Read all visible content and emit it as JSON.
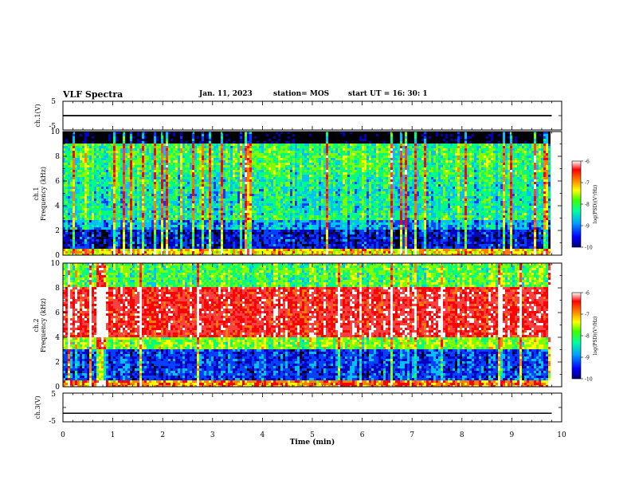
{
  "header": {
    "title": "VLF Spectra",
    "date": "Jan. 11, 2023",
    "station": "station= MOS",
    "start": "start  UT =   16: 30: 1"
  },
  "chart_data": [
    {
      "type": "line",
      "panel": "ch1-waveform",
      "ylabel": "ch.1(V)",
      "ylim": [
        -5,
        5
      ],
      "yticks": [
        "5",
        "-5"
      ],
      "xlim": [
        0,
        10
      ],
      "series": [
        {
          "values_level": 0,
          "extent_min": [
            0,
            9.8
          ]
        }
      ]
    },
    {
      "type": "heatmap",
      "panel": "ch1-spectrogram",
      "ylabel": "ch.1\nFrequency (kHz)",
      "xlim": [
        0,
        10
      ],
      "ylim": [
        0,
        10
      ],
      "xticks": [
        0,
        1,
        2,
        3,
        4,
        5,
        6,
        7,
        8,
        9,
        10
      ],
      "yticks": [
        0,
        2,
        4,
        6,
        8,
        10
      ],
      "data_extent_min": [
        0,
        9.8
      ],
      "colorbar": {
        "label": "log(PSD)(V²/Hz)",
        "ticks": [
          "-6",
          "-7",
          "-8",
          "-9",
          "-10"
        ],
        "range": [
          -10,
          -6
        ]
      },
      "profile_description_level": {
        "band_0_0.5kHz": -7.5,
        "band_0.5_2.8kHz": -9.5,
        "band_3_9kHz": -8.2,
        "band_9_10kHz": -10
      }
    },
    {
      "type": "heatmap",
      "panel": "ch2-spectrogram",
      "ylabel": "ch.2\nFrequency (kHz)",
      "xlim": [
        0,
        10
      ],
      "ylim": [
        0,
        10
      ],
      "xticks": [
        0,
        1,
        2,
        3,
        4,
        5,
        6,
        7,
        8,
        9,
        10
      ],
      "yticks": [
        0,
        2,
        4,
        6,
        8,
        10
      ],
      "data_extent_min": [
        0,
        9.8
      ],
      "colorbar": {
        "label": "log(PSD)(V²/Hz)",
        "ticks": [
          "-6",
          "-7",
          "-8",
          "-9",
          "-10"
        ],
        "range": [
          -10,
          -6
        ]
      },
      "profile_description_level": {
        "band_0_0.5kHz": -7,
        "band_0.5_3kHz": -9.3,
        "band_3_4kHz": -8,
        "band_4_8kHz": -6.8,
        "band_8_10kHz": -8
      }
    },
    {
      "type": "line",
      "panel": "ch3-waveform",
      "ylabel": "ch.3(V)",
      "xlabel": "Time  (min)",
      "ylim": [
        -5,
        5
      ],
      "yticks": [
        "5",
        "-5"
      ],
      "xlim": [
        0,
        10
      ],
      "xticks": [
        "0",
        "1",
        "2",
        "3",
        "4",
        "5",
        "6",
        "7",
        "8",
        "9",
        "10"
      ],
      "series": [
        {
          "values_level": -2,
          "extent_min": [
            0,
            9.8
          ]
        }
      ]
    }
  ],
  "colors": {
    "colormap": [
      "#000000",
      "#0000c0",
      "#0040ff",
      "#00c0ff",
      "#00ff80",
      "#80ff00",
      "#ffff00",
      "#ff8000",
      "#ff0000",
      "#ff4040",
      "#ffffff"
    ]
  }
}
